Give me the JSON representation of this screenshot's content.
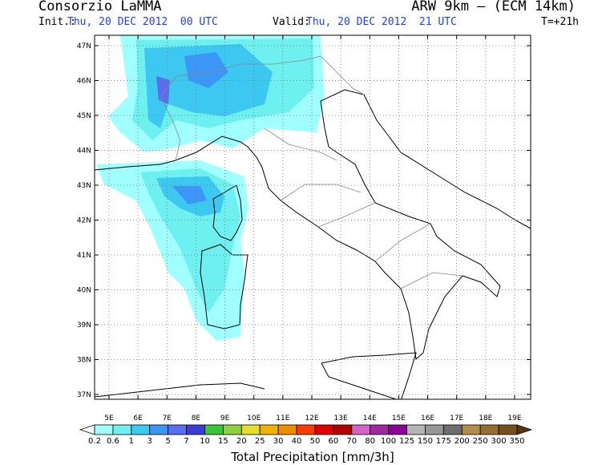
{
  "header": {
    "left_title": "Consorzio LaMMA",
    "right_title": "ARW 9km – (ECM 14km)",
    "init_label": "Init.:",
    "init_time": "Thu, 20 DEC 2012  00 UTC",
    "valid_label": "Valid:",
    "valid_time": "Thu, 20 DEC 2012  21 UTC",
    "lead_time": "T=+21h"
  },
  "map": {
    "lat_ticks": [
      {
        "value": 47,
        "label": "47N"
      },
      {
        "value": 46,
        "label": "46N"
      },
      {
        "value": 45,
        "label": "45N"
      },
      {
        "value": 44,
        "label": "44N"
      },
      {
        "value": 43,
        "label": "43N"
      },
      {
        "value": 42,
        "label": "42N"
      },
      {
        "value": 41,
        "label": "41N"
      },
      {
        "value": 40,
        "label": "40N"
      },
      {
        "value": 39,
        "label": "39N"
      },
      {
        "value": 38,
        "label": "38N"
      },
      {
        "value": 37,
        "label": "37N"
      }
    ],
    "lon_ticks": [
      {
        "value": 5,
        "label": "5E"
      },
      {
        "value": 6,
        "label": "6E"
      },
      {
        "value": 7,
        "label": "7E"
      },
      {
        "value": 8,
        "label": "8E"
      },
      {
        "value": 9,
        "label": "9E"
      },
      {
        "value": 10,
        "label": "10E"
      },
      {
        "value": 11,
        "label": "11E"
      },
      {
        "value": 12,
        "label": "12E"
      },
      {
        "value": 13,
        "label": "13E"
      },
      {
        "value": 14,
        "label": "14E"
      },
      {
        "value": 15,
        "label": "15E"
      },
      {
        "value": 16,
        "label": "16E"
      },
      {
        "value": 17,
        "label": "17E"
      },
      {
        "value": 18,
        "label": "18E"
      },
      {
        "value": 19,
        "label": "19E"
      }
    ]
  },
  "colorbar": {
    "levels": [
      0.2,
      0.6,
      1,
      3,
      5,
      7,
      10,
      15,
      20,
      25,
      30,
      40,
      50,
      60,
      70,
      80,
      100,
      125,
      150,
      175,
      200,
      250,
      300,
      350
    ],
    "colors": [
      "#a0ffff",
      "#6ef0f0",
      "#3cc8f0",
      "#3c96f5",
      "#5a6ef0",
      "#3c3cd2",
      "#36c636",
      "#8cd23c",
      "#e6dc32",
      "#f0b400",
      "#f08c00",
      "#fa3c00",
      "#e00000",
      "#b40000",
      "#d264c8",
      "#a028a0",
      "#8c0096",
      "#b4b4b4",
      "#969696",
      "#6e6e6e",
      "#b48c46",
      "#966e32",
      "#785020",
      "#5a3210"
    ],
    "title": "Total Precipitation [mm/3h]"
  }
}
